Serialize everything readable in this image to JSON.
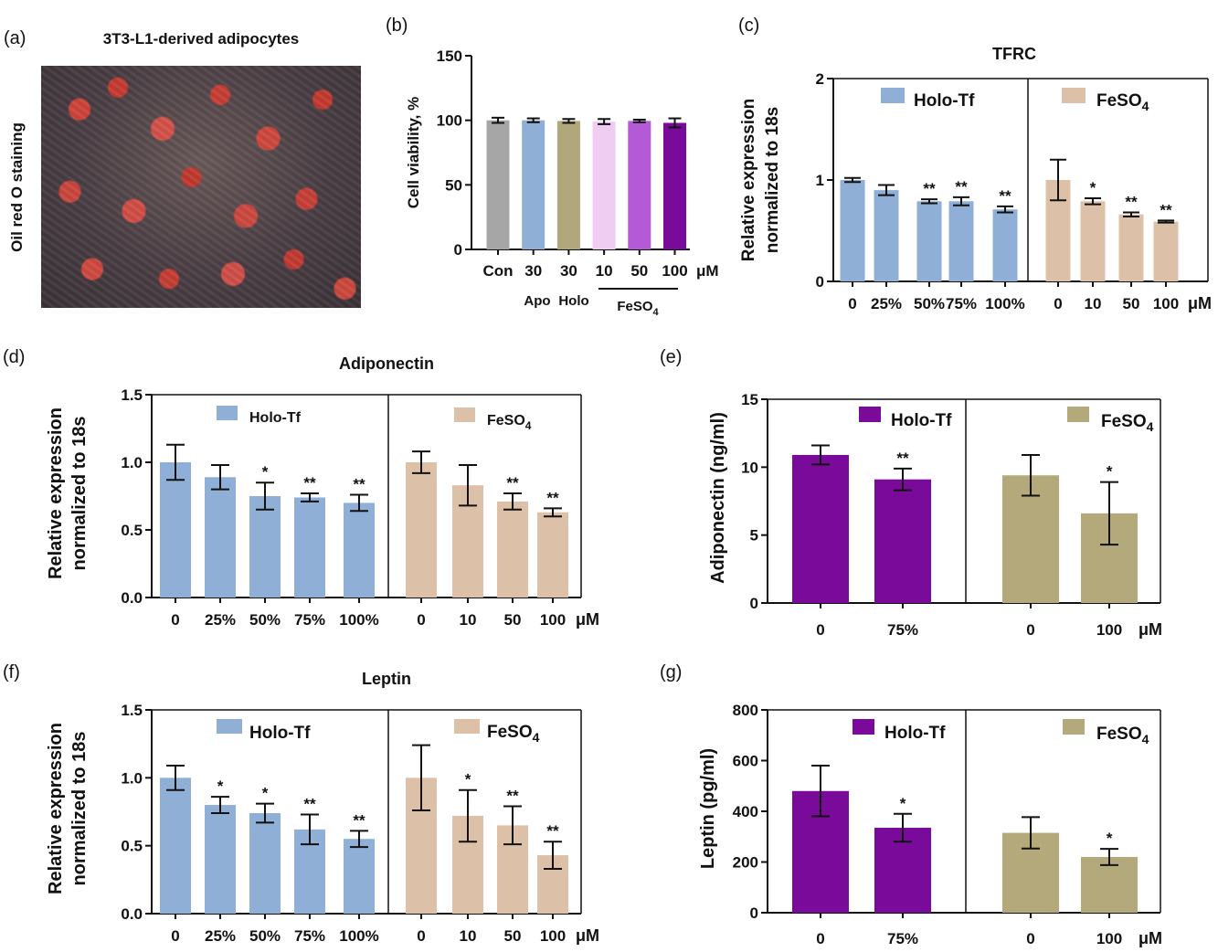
{
  "panel_a": {
    "label": "(a)",
    "title": "3T3-L1-derived adipocytes",
    "side_label": "Oil red O staining"
  },
  "colors": {
    "gray": "#a6a6a6",
    "blue": "#8fafd6",
    "olive": "#b0a87a",
    "pink": "#efcdf3",
    "violet": "#b55ad6",
    "purple": "#7a0a9a",
    "tan": "#dcc0a8",
    "fe_olive": "#b3a97b"
  },
  "chart_data": [
    {
      "id": "b",
      "panel_label": "(b)",
      "type": "bar",
      "ylabel": "Cell viability, %",
      "ylim": [
        0,
        150
      ],
      "yticks": [
        0,
        50,
        100,
        150
      ],
      "categories": [
        "Con",
        "30",
        "30",
        "10",
        "50",
        "100"
      ],
      "values": [
        100,
        100,
        99.5,
        99,
        99.5,
        98
      ],
      "errors": [
        2,
        1.5,
        1.5,
        2,
        1,
        3.5
      ],
      "bar_colors": [
        "gray",
        "blue",
        "olive",
        "pink",
        "violet",
        "purple"
      ],
      "unit": "μM",
      "group_labels": [
        "Apo",
        "Holo",
        "FeSO4"
      ]
    },
    {
      "id": "c",
      "panel_label": "(c)",
      "type": "bar",
      "title": "TFRC",
      "ylabel": [
        "Relative expression",
        "normalized to 18s"
      ],
      "ylim": [
        0,
        2
      ],
      "yticks": [
        "0",
        "1",
        "2"
      ],
      "groups": [
        {
          "legend": "Holo-Tf",
          "color": "blue",
          "categories": [
            "0",
            "25%",
            "50%",
            "75%",
            "100%"
          ],
          "values": [
            1.0,
            0.9,
            0.79,
            0.79,
            0.71
          ],
          "errors": [
            0.02,
            0.05,
            0.02,
            0.04,
            0.03
          ],
          "sig": [
            "",
            "",
            "**",
            "**",
            "**"
          ]
        },
        {
          "legend": "FeSO4",
          "color": "tan",
          "categories": [
            "0",
            "10",
            "50",
            "100"
          ],
          "values": [
            1.0,
            0.79,
            0.66,
            0.59
          ],
          "errors": [
            0.2,
            0.03,
            0.02,
            0.01
          ],
          "sig": [
            "",
            "*",
            "**",
            "**"
          ]
        }
      ],
      "unit": "μM"
    },
    {
      "id": "d",
      "panel_label": "(d)",
      "type": "bar",
      "title": "Adiponectin",
      "ylabel": [
        "Relative expression",
        "normalized to 18s"
      ],
      "ylim": [
        0,
        1.5
      ],
      "yticks": [
        "0.0",
        "0.5",
        "1.0",
        "1.5"
      ],
      "groups": [
        {
          "legend": "Holo-Tf",
          "color": "blue",
          "categories": [
            "0",
            "25%",
            "50%",
            "75%",
            "100%"
          ],
          "values": [
            1.0,
            0.89,
            0.75,
            0.74,
            0.7
          ],
          "errors": [
            0.13,
            0.09,
            0.1,
            0.03,
            0.06
          ],
          "sig": [
            "",
            "",
            "*",
            "**",
            "**"
          ]
        },
        {
          "legend": "FeSO4",
          "color": "tan",
          "categories": [
            "0",
            "10",
            "50",
            "100"
          ],
          "values": [
            1.0,
            0.83,
            0.71,
            0.63
          ],
          "errors": [
            0.08,
            0.15,
            0.06,
            0.03
          ],
          "sig": [
            "",
            "",
            "**",
            "**"
          ]
        }
      ],
      "unit": "μM"
    },
    {
      "id": "e",
      "panel_label": "(e)",
      "type": "bar",
      "ylabel": [
        "Adiponectin (ng/ml)"
      ],
      "ylim": [
        0,
        15
      ],
      "yticks": [
        "0",
        "5",
        "10",
        "15"
      ],
      "groups": [
        {
          "legend": "Holo-Tf",
          "color": "purple",
          "categories": [
            "0",
            "75%"
          ],
          "values": [
            10.9,
            9.1
          ],
          "errors": [
            0.7,
            0.8
          ],
          "sig": [
            "",
            "**"
          ]
        },
        {
          "legend": "FeSO4",
          "color": "fe_olive",
          "categories": [
            "0",
            "100"
          ],
          "values": [
            9.4,
            6.6
          ],
          "errors": [
            1.5,
            2.3
          ],
          "sig": [
            "",
            "*"
          ]
        }
      ],
      "unit": "μM"
    },
    {
      "id": "f",
      "panel_label": "(f)",
      "type": "bar",
      "title": "Leptin",
      "ylabel": [
        "Relative expression",
        "normalized to 18s"
      ],
      "ylim": [
        0,
        1.5
      ],
      "yticks": [
        "0.0",
        "0.5",
        "1.0",
        "1.5"
      ],
      "groups": [
        {
          "legend": "Holo-Tf",
          "color": "blue",
          "categories": [
            "0",
            "25%",
            "50%",
            "75%",
            "100%"
          ],
          "values": [
            1.0,
            0.8,
            0.74,
            0.62,
            0.55
          ],
          "errors": [
            0.09,
            0.06,
            0.07,
            0.11,
            0.06
          ],
          "sig": [
            "",
            "*",
            "*",
            "**",
            "**"
          ]
        },
        {
          "legend": "FeSO4",
          "color": "tan",
          "categories": [
            "0",
            "10",
            "50",
            "100"
          ],
          "values": [
            1.0,
            0.72,
            0.65,
            0.43
          ],
          "errors": [
            0.24,
            0.19,
            0.14,
            0.1
          ],
          "sig": [
            "",
            "*",
            "**",
            "**"
          ]
        }
      ],
      "unit": "μM"
    },
    {
      "id": "g",
      "panel_label": "(g)",
      "type": "bar",
      "ylabel": [
        "Leptin (pg/ml)"
      ],
      "ylim": [
        0,
        800
      ],
      "yticks": [
        "0",
        "200",
        "400",
        "600",
        "800"
      ],
      "groups": [
        {
          "legend": "Holo-Tf",
          "color": "purple",
          "categories": [
            "0",
            "75%"
          ],
          "values": [
            480,
            335
          ],
          "errors": [
            100,
            55
          ],
          "sig": [
            "",
            "*"
          ]
        },
        {
          "legend": "FeSO4",
          "color": "fe_olive",
          "categories": [
            "0",
            "100"
          ],
          "values": [
            315,
            220
          ],
          "errors": [
            62,
            32
          ],
          "sig": [
            "",
            "*"
          ]
        }
      ],
      "unit": "μM"
    }
  ]
}
